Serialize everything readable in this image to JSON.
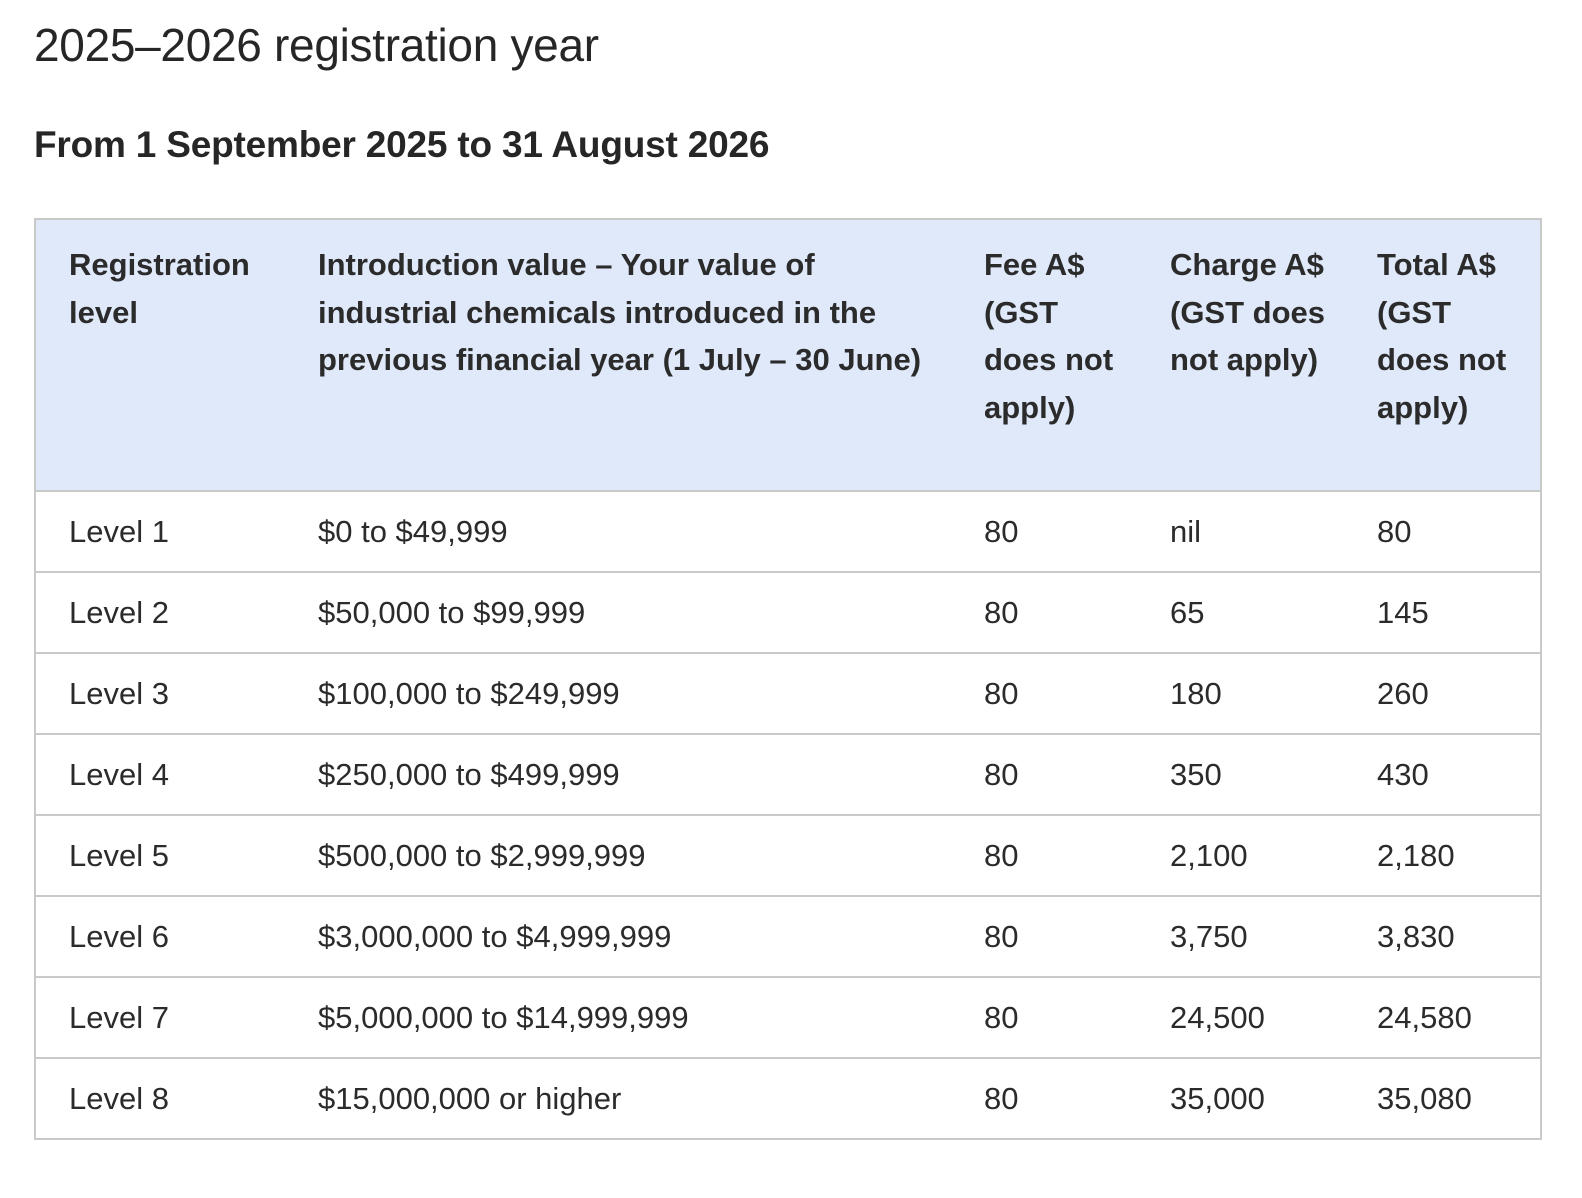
{
  "headings": {
    "year": "2025–2026 registration year",
    "period": "From 1 September 2025 to 31 August 2026"
  },
  "table": {
    "headers": [
      "Registration level",
      "Introduction value – Your value of industrial chemicals introduced in the previous financial year (1 July – 30 June)",
      "Fee A$ (GST does not apply)",
      "Charge A$ (GST does not apply)",
      "Total A$ (GST does not apply)"
    ],
    "rows": [
      [
        "Level 1",
        "$0 to $49,999",
        "80",
        "nil",
        "80"
      ],
      [
        "Level 2",
        "$50,000 to $99,999",
        "80",
        "65",
        "145"
      ],
      [
        "Level 3",
        "$100,000 to $249,999",
        "80",
        "180",
        "260"
      ],
      [
        "Level 4",
        "$250,000 to $499,999",
        "80",
        "350",
        "430"
      ],
      [
        "Level 5",
        "$500,000 to $2,999,999",
        "80",
        "2,100",
        "2,180"
      ],
      [
        "Level 6",
        "$3,000,000 to $4,999,999",
        "80",
        "3,750",
        "3,830"
      ],
      [
        "Level 7",
        "$5,000,000 to $14,999,999",
        "80",
        "24,500",
        "24,580"
      ],
      [
        "Level 8",
        "$15,000,000 or higher",
        "80",
        "35,000",
        "35,080"
      ]
    ]
  },
  "colors": {
    "header_background": "#e0e9fa",
    "border": "#c9c9c9",
    "text": "#2b2b2b"
  }
}
